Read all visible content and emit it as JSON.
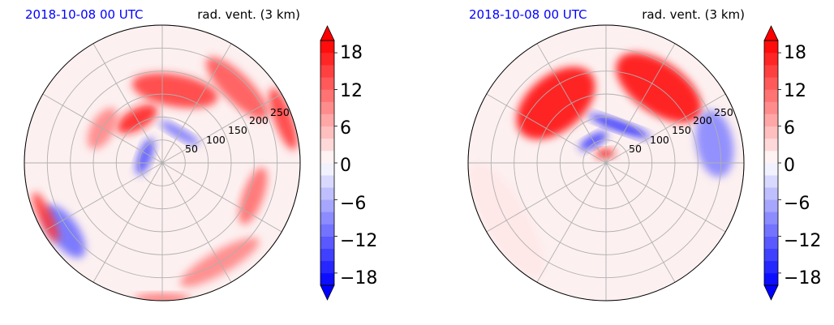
{
  "panels": [
    {
      "time_label": "2018-10-08 00 UTC",
      "field_label": "rad. vent. (3 km)",
      "radial_tick_labels": [
        "50",
        "100",
        "150",
        "200",
        "250"
      ]
    },
    {
      "time_label": "2018-10-08 00 UTC",
      "field_label": "rad. vent. (3 km)",
      "radial_tick_labels": [
        "50",
        "100",
        "150",
        "200",
        "250"
      ]
    }
  ],
  "colorbar": {
    "tick_labels": [
      "18",
      "12",
      "6",
      "0",
      "−6",
      "−12",
      "−18"
    ],
    "tick_values": [
      18,
      12,
      6,
      0,
      -6,
      -12,
      -18
    ],
    "range": [
      -20,
      20
    ],
    "extend": "both",
    "colormap": "bwr",
    "color_negative": "#0000ff",
    "color_zero": "#ffffff",
    "color_positive": "#ff0000"
  },
  "chart_data": {
    "type": "heatmap",
    "projection": "polar",
    "radial_grid_values": [
      50,
      100,
      150,
      200,
      250,
      300
    ],
    "angular_grid_deg": [
      0,
      30,
      60,
      90,
      120,
      150,
      180,
      210,
      240,
      270,
      300,
      330
    ],
    "features": [
      [
        {
          "theta": 80,
          "r": 160,
          "dtheta": 60,
          "dr": 70,
          "value": 16
        },
        {
          "theta": 120,
          "r": 110,
          "dtheta": 40,
          "dr": 45,
          "value": 18
        },
        {
          "theta": 150,
          "r": 150,
          "dtheta": 30,
          "dr": 50,
          "value": 10
        },
        {
          "theta": 45,
          "r": 230,
          "dtheta": 40,
          "dr": 60,
          "value": 14
        },
        {
          "theta": 20,
          "r": 280,
          "dtheta": 25,
          "dr": 40,
          "value": 16
        },
        {
          "theta": 340,
          "r": 210,
          "dtheta": 30,
          "dr": 45,
          "value": 12
        },
        {
          "theta": 300,
          "r": 250,
          "dtheta": 40,
          "dr": 50,
          "value": 10
        },
        {
          "theta": 160,
          "r": 40,
          "dtheta": 90,
          "dr": 30,
          "value": -14
        },
        {
          "theta": 60,
          "r": 75,
          "dtheta": 60,
          "dr": 15,
          "value": -12
        },
        {
          "theta": 215,
          "r": 260,
          "dtheta": 25,
          "dr": 60,
          "value": -12
        },
        {
          "theta": 205,
          "r": 280,
          "dtheta": 20,
          "dr": 30,
          "value": 16
        },
        {
          "theta": 270,
          "r": 295,
          "dtheta": 20,
          "dr": 20,
          "value": 12
        }
      ],
      [
        {
          "theta": 130,
          "r": 170,
          "dtheta": 60,
          "dr": 120,
          "value": 20
        },
        {
          "theta": 55,
          "r": 200,
          "dtheta": 55,
          "dr": 110,
          "value": 20
        },
        {
          "theta": 10,
          "r": 240,
          "dtheta": 30,
          "dr": 80,
          "value": -10
        },
        {
          "theta": 70,
          "r": 85,
          "dtheta": 80,
          "dr": 22,
          "value": -18
        },
        {
          "theta": 120,
          "r": 55,
          "dtheta": 50,
          "dr": 25,
          "value": -16
        },
        {
          "theta": 95,
          "r": 20,
          "dtheta": 60,
          "dr": 15,
          "value": 18
        },
        {
          "theta": 210,
          "r": 250,
          "dtheta": 60,
          "dr": 90,
          "value": 2
        }
      ]
    ]
  }
}
